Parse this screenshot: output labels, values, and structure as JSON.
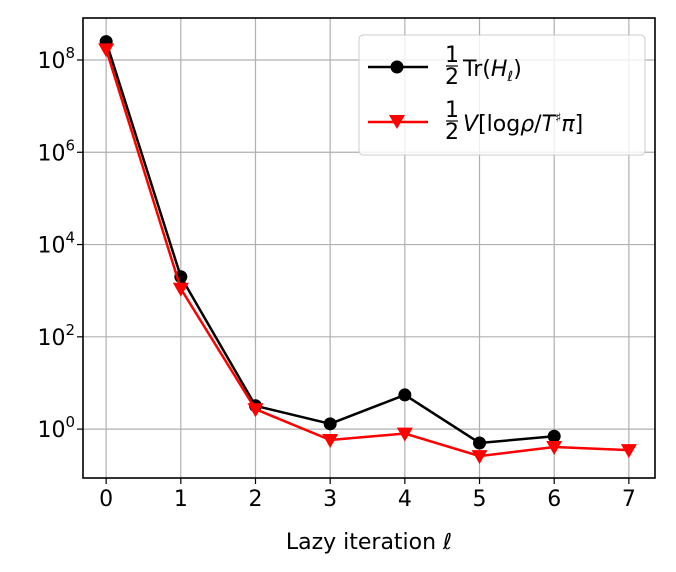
{
  "chart_data": {
    "type": "line",
    "xlabel": "Lazy iteration ℓ",
    "ylabel": "",
    "yscale": "log",
    "xlim": [
      -0.31,
      7.35
    ],
    "ylim_log10": [
      -1.06,
      8.91
    ],
    "grid": true,
    "legend_placement": "top-right",
    "x_ticks": [
      0,
      1,
      2,
      3,
      4,
      5,
      6,
      7
    ],
    "y_ticks": [
      {
        "exp": 0,
        "label": "10",
        "sup": "0"
      },
      {
        "exp": 2,
        "label": "10",
        "sup": "2"
      },
      {
        "exp": 4,
        "label": "10",
        "sup": "4"
      },
      {
        "exp": 6,
        "label": "10",
        "sup": "6"
      },
      {
        "exp": 8,
        "label": "10",
        "sup": "8"
      }
    ],
    "series": [
      {
        "name": "½Tr(H_ℓ)",
        "legend_main": "Tr(",
        "legend_italic": "H",
        "legend_sub": "ℓ",
        "legend_end": ")",
        "color": "#000000",
        "marker": "circle",
        "x": [
          0,
          1,
          2,
          3,
          4,
          5,
          6
        ],
        "y": [
          250000000.0,
          2000,
          3.2,
          1.3,
          5.5,
          0.5,
          0.7
        ]
      },
      {
        "name": "½V[logρ/T♯π]",
        "legend_italic": "V",
        "legend_main": "[log",
        "legend_rho": "ρ",
        "legend_mid": "/",
        "legend_T": "T",
        "legend_sharp": "♯",
        "legend_pi": "π",
        "legend_end": "]",
        "color": "#ff0000",
        "marker": "triangle-down",
        "x": [
          0,
          1,
          2,
          3,
          4,
          5,
          6,
          7
        ],
        "y": [
          170000000.0,
          1100,
          2.7,
          0.58,
          0.8,
          0.26,
          0.41,
          0.35
        ]
      }
    ],
    "legend_fraction": {
      "num": "1",
      "den": "2"
    }
  }
}
